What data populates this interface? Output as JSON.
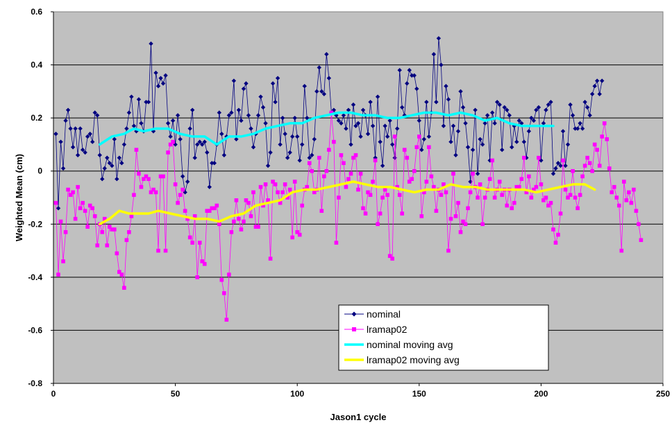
{
  "chart_data": {
    "type": "line",
    "xlabel": "Jason1 cycle",
    "ylabel": "Weighted Mean (cm)",
    "xlim": [
      0,
      250
    ],
    "ylim": [
      -0.8,
      0.6
    ],
    "x_ticks": [
      0,
      50,
      100,
      150,
      200,
      250
    ],
    "y_ticks": [
      -0.8,
      -0.6,
      -0.4,
      -0.2,
      0,
      0.2,
      0.4,
      0.6
    ],
    "x_tick_labels": [
      "0",
      "50",
      "100",
      "150",
      "200",
      "250"
    ],
    "y_tick_labels": [
      "-0.8",
      "-0.6",
      "-0.4",
      "-0.2",
      "0",
      "0.2",
      "0.4",
      "0.6"
    ],
    "grid": "horizontal",
    "legend_position": "bottom-right",
    "background_color": "#c0c0c0",
    "series": [
      {
        "name": "nominal",
        "color": "#000080",
        "marker": "diamond",
        "x_start": 1,
        "x_step": 1,
        "values": [
          0.14,
          -0.14,
          0.11,
          0.01,
          0.19,
          0.23,
          0.16,
          0.09,
          0.16,
          0.06,
          0.16,
          0.08,
          0.07,
          0.13,
          0.14,
          0.11,
          0.22,
          0.21,
          0.06,
          -0.03,
          0.01,
          0.05,
          0.03,
          0.02,
          0.12,
          -0.03,
          0.05,
          0.03,
          0.1,
          0.16,
          0.22,
          0.28,
          0.17,
          0.15,
          0.27,
          0.18,
          0.15,
          0.26,
          0.26,
          0.48,
          0.15,
          0.37,
          0.32,
          0.35,
          0.33,
          0.36,
          0.18,
          0.13,
          0.19,
          0.1,
          0.21,
          0.12,
          -0.02,
          -0.08,
          -0.04,
          0.16,
          0.23,
          0.05,
          0.1,
          0.11,
          0.1,
          0.11,
          0.07,
          -0.06,
          0.03,
          0.03,
          0.1,
          0.22,
          0.14,
          0.06,
          0.13,
          0.21,
          0.22,
          0.34,
          0.12,
          0.23,
          0.19,
          0.31,
          0.33,
          0.21,
          0.16,
          0.09,
          0.14,
          0.21,
          0.28,
          0.24,
          0.18,
          0.02,
          0.07,
          0.33,
          0.26,
          0.35,
          0.1,
          0.2,
          0.14,
          0.05,
          0.07,
          0.13,
          0.2,
          0.13,
          0.04,
          0.1,
          0.32,
          0.2,
          0.05,
          0.06,
          0.12,
          0.3,
          0.39,
          0.3,
          0.29,
          0.44,
          0.35,
          0.22,
          0.23,
          0.21,
          0.19,
          0.18,
          0.21,
          0.16,
          0.23,
          0.1,
          0.25,
          0.17,
          0.18,
          0.13,
          0.23,
          0.21,
          0.14,
          0.26,
          0.17,
          0.05,
          0.28,
          0.11,
          0.02,
          0.17,
          0.13,
          0.19,
          0.1,
          0.05,
          0.16,
          0.38,
          0.24,
          0.21,
          0.33,
          0.38,
          0.36,
          0.36,
          0.31,
          0.19,
          0.08,
          0.12,
          0.26,
          0.13,
          0.22,
          0.44,
          0.26,
          0.5,
          0.4,
          0.17,
          0.32,
          0.27,
          0.11,
          0.17,
          0.06,
          0.15,
          0.3,
          0.24,
          0.18,
          0.09,
          -0.04,
          0.08,
          0.23,
          -0.01,
          0.12,
          0.1,
          0.18,
          0.21,
          0.04,
          0.22,
          0.18,
          0.26,
          0.25,
          0.08,
          0.24,
          0.23,
          0.21,
          0.09,
          0.17,
          0.11,
          0.19,
          0.18,
          0.11,
          0.05,
          0.15,
          0.2,
          0.19,
          0.23,
          0.24,
          0.04,
          0.18,
          0.23,
          0.25,
          0.26,
          -0.01,
          0.01,
          0.03,
          0.02,
          0.15,
          0.02,
          0.1,
          0.25,
          0.21,
          0.16,
          0.16,
          0.18,
          0.16,
          0.26,
          0.24,
          0.21,
          0.29,
          0.32,
          0.34,
          0.29,
          0.34
        ]
      },
      {
        "name": "lramap02",
        "color": "#ff00ff",
        "marker": "square",
        "x_start": 1,
        "x_step": 1,
        "values": [
          -0.12,
          -0.39,
          -0.19,
          -0.34,
          -0.23,
          -0.07,
          -0.09,
          -0.08,
          -0.18,
          -0.06,
          -0.14,
          -0.12,
          -0.15,
          -0.21,
          -0.13,
          -0.14,
          -0.17,
          -0.28,
          -0.2,
          -0.23,
          -0.18,
          -0.28,
          -0.21,
          -0.22,
          -0.22,
          -0.31,
          -0.38,
          -0.39,
          -0.44,
          -0.26,
          -0.23,
          -0.17,
          -0.09,
          0.08,
          -0.01,
          -0.06,
          -0.03,
          -0.02,
          -0.03,
          -0.08,
          -0.07,
          -0.08,
          -0.3,
          -0.02,
          -0.02,
          -0.3,
          0.07,
          0.1,
          0.11,
          -0.05,
          -0.12,
          -0.09,
          -0.07,
          -0.15,
          -0.18,
          -0.25,
          -0.27,
          -0.17,
          -0.4,
          -0.27,
          -0.34,
          -0.35,
          -0.15,
          -0.15,
          -0.14,
          -0.14,
          -0.13,
          -0.2,
          -0.41,
          -0.46,
          -0.56,
          -0.39,
          -0.23,
          -0.19,
          -0.11,
          -0.18,
          -0.22,
          -0.19,
          -0.11,
          -0.12,
          -0.17,
          -0.08,
          -0.21,
          -0.21,
          -0.06,
          -0.13,
          -0.05,
          -0.11,
          -0.33,
          -0.04,
          -0.05,
          -0.08,
          -0.12,
          -0.08,
          -0.05,
          -0.1,
          -0.07,
          -0.25,
          -0.04,
          -0.23,
          -0.24,
          -0.13,
          -0.07,
          -0.06,
          0.03,
          0.0,
          -0.08,
          -0.07,
          0.05,
          -0.15,
          -0.02,
          0.0,
          0.08,
          0.22,
          0.11,
          -0.27,
          -0.1,
          0.06,
          0.03,
          -0.06,
          -0.03,
          -0.01,
          0.05,
          0.06,
          -0.07,
          -0.01,
          -0.14,
          -0.16,
          -0.08,
          -0.09,
          -0.04,
          0.04,
          -0.2,
          -0.16,
          -0.1,
          -0.07,
          -0.09,
          -0.32,
          -0.33,
          0.13,
          -0.06,
          -0.09,
          -0.16,
          0.08,
          0.05,
          -0.04,
          -0.03,
          0.0,
          0.09,
          0.13,
          -0.17,
          -0.08,
          -0.04,
          0.09,
          -0.02,
          -0.06,
          -0.15,
          -0.07,
          -0.09,
          -0.05,
          -0.08,
          -0.3,
          -0.18,
          -0.01,
          -0.17,
          -0.12,
          -0.23,
          -0.19,
          -0.2,
          -0.14,
          -0.08,
          -0.01,
          -0.06,
          -0.1,
          -0.05,
          -0.2,
          -0.1,
          -0.07,
          -0.03,
          0.04,
          -0.1,
          -0.07,
          -0.04,
          -0.09,
          -0.07,
          -0.13,
          -0.07,
          -0.14,
          -0.12,
          -0.06,
          -0.06,
          -0.03,
          0.05,
          -0.08,
          -0.02,
          -0.1,
          -0.07,
          -0.06,
          0.05,
          -0.05,
          -0.11,
          -0.1,
          -0.13,
          -0.12,
          -0.22,
          -0.27,
          -0.24,
          -0.16,
          0.04,
          -0.07,
          -0.1,
          -0.09,
          0.0,
          -0.1,
          -0.14,
          -0.09,
          -0.02,
          0.02,
          0.05,
          0.03,
          0.0,
          0.1,
          0.08,
          0.02,
          0.13,
          0.18,
          0.12,
          0.01,
          -0.08,
          -0.06,
          -0.1,
          -0.13,
          -0.3,
          -0.04,
          -0.11,
          -0.08,
          -0.12,
          -0.07,
          -0.15,
          -0.2,
          -0.26
        ]
      },
      {
        "name": "nominal moving avg",
        "color": "#00ffff",
        "line_width": 3.5,
        "x": [
          19,
          24,
          29,
          33,
          37,
          42,
          47,
          52,
          57,
          62,
          67,
          72,
          77,
          82,
          87,
          92,
          97,
          102,
          107,
          112,
          117,
          122,
          127,
          132,
          137,
          142,
          147,
          152,
          157,
          162,
          167,
          172,
          177,
          182,
          187,
          192,
          197,
          202,
          205
        ],
        "y": [
          0.1,
          0.13,
          0.14,
          0.16,
          0.15,
          0.16,
          0.16,
          0.14,
          0.13,
          0.13,
          0.1,
          0.13,
          0.13,
          0.14,
          0.16,
          0.17,
          0.18,
          0.18,
          0.2,
          0.21,
          0.22,
          0.22,
          0.21,
          0.21,
          0.2,
          0.2,
          0.21,
          0.22,
          0.22,
          0.21,
          0.22,
          0.21,
          0.19,
          0.2,
          0.18,
          0.17,
          0.17,
          0.17,
          0.17
        ]
      },
      {
        "name": "lramap02 moving avg",
        "color": "#ffff00",
        "line_width": 3.5,
        "x": [
          19,
          23,
          27,
          31,
          35,
          39,
          43,
          48,
          53,
          58,
          63,
          68,
          73,
          78,
          83,
          88,
          93,
          98,
          103,
          108,
          113,
          118,
          123,
          128,
          133,
          138,
          143,
          148,
          153,
          158,
          163,
          168,
          173,
          178,
          183,
          188,
          193,
          198,
          203,
          208,
          213,
          218,
          222
        ],
        "y": [
          -0.2,
          -0.18,
          -0.15,
          -0.16,
          -0.16,
          -0.16,
          -0.15,
          -0.16,
          -0.17,
          -0.18,
          -0.18,
          -0.19,
          -0.17,
          -0.16,
          -0.13,
          -0.12,
          -0.11,
          -0.08,
          -0.07,
          -0.07,
          -0.06,
          -0.05,
          -0.04,
          -0.05,
          -0.06,
          -0.06,
          -0.07,
          -0.08,
          -0.07,
          -0.07,
          -0.05,
          -0.06,
          -0.06,
          -0.07,
          -0.07,
          -0.07,
          -0.07,
          -0.08,
          -0.07,
          -0.06,
          -0.05,
          -0.05,
          -0.07
        ]
      }
    ]
  }
}
